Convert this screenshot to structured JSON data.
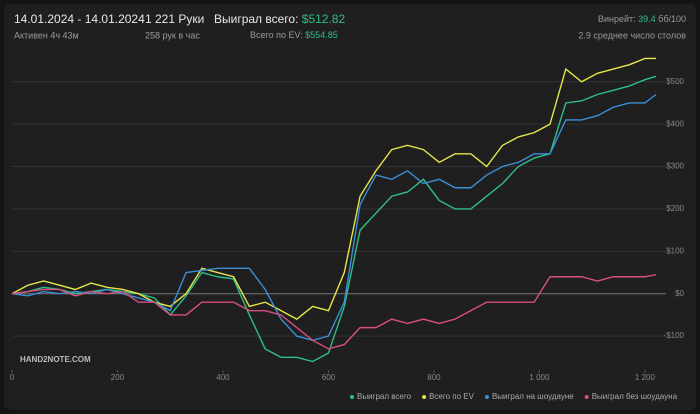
{
  "header": {
    "date_range": "14.01.2024 - 14.01.2024",
    "active": "Активен 4ч 43м",
    "hands": "1 221 Руки",
    "hands_per_hour": "258 рук в час",
    "won_label": "Выиграл всего:",
    "won_value": "$512.82",
    "ev_label": "Всего по EV:",
    "ev_value": "$554.85",
    "winrate_label": "Винрейт:",
    "winrate_value": "39.4",
    "winrate_unit": "бб/100",
    "tables": "2.9 среднее число столов"
  },
  "watermark": "HAND2NOTE.COM",
  "chart_data": {
    "type": "line",
    "x": [
      0,
      30,
      60,
      90,
      120,
      150,
      180,
      210,
      240,
      270,
      300,
      330,
      360,
      390,
      420,
      450,
      480,
      510,
      540,
      570,
      600,
      630,
      660,
      690,
      720,
      750,
      780,
      810,
      840,
      870,
      900,
      930,
      960,
      990,
      1020,
      1050,
      1080,
      1110,
      1140,
      1170,
      1200,
      1221
    ],
    "xlim": [
      0,
      1221
    ],
    "xticks": [
      0,
      200,
      400,
      600,
      800,
      {
        "value": 1000,
        "label": "1 000"
      },
      {
        "value": 1200,
        "label": "1 200"
      }
    ],
    "ylim": [
      -180,
      575
    ],
    "yticks": [
      {
        "value": -100,
        "label": "-$100"
      },
      {
        "value": 0,
        "label": "$0"
      },
      {
        "value": 100,
        "label": "$100"
      },
      {
        "value": 200,
        "label": "$200"
      },
      {
        "value": 300,
        "label": "$300"
      },
      {
        "value": 400,
        "label": "$400"
      },
      {
        "value": 500,
        "label": "$500"
      }
    ],
    "grid": true,
    "series": [
      {
        "name": "Выиграл всего",
        "color": "#2fbf85",
        "values": [
          0,
          5,
          15,
          10,
          0,
          5,
          10,
          5,
          0,
          -10,
          -50,
          -5,
          50,
          40,
          35,
          -50,
          -130,
          -150,
          -150,
          -160,
          -140,
          -30,
          150,
          190,
          230,
          240,
          270,
          220,
          200,
          200,
          230,
          260,
          300,
          320,
          330,
          450,
          455,
          470,
          480,
          490,
          505,
          513
        ]
      },
      {
        "name": "Всего по EV",
        "color": "#e6e64a",
        "values": [
          0,
          20,
          30,
          20,
          10,
          25,
          15,
          10,
          0,
          -20,
          -30,
          0,
          60,
          50,
          40,
          -30,
          -20,
          -40,
          -60,
          -30,
          -40,
          50,
          230,
          290,
          340,
          350,
          340,
          310,
          330,
          330,
          300,
          350,
          370,
          380,
          400,
          530,
          500,
          520,
          530,
          540,
          555,
          555
        ]
      },
      {
        "name": "Выиграл на шоудауне",
        "color": "#3a8fd8",
        "values": [
          0,
          -5,
          5,
          0,
          5,
          0,
          10,
          0,
          -10,
          -20,
          -40,
          50,
          55,
          60,
          60,
          60,
          10,
          -60,
          -100,
          -110,
          -100,
          -20,
          210,
          280,
          270,
          290,
          260,
          270,
          250,
          250,
          280,
          300,
          310,
          330,
          330,
          410,
          410,
          420,
          440,
          450,
          450,
          470
        ]
      },
      {
        "name": "Выиграл без шоудауна",
        "color": "#d94f7d",
        "values": [
          0,
          5,
          10,
          10,
          -5,
          5,
          0,
          5,
          -20,
          -20,
          -50,
          -50,
          -20,
          -20,
          -20,
          -40,
          -40,
          -50,
          -80,
          -110,
          -130,
          -120,
          -80,
          -80,
          -60,
          -70,
          -60,
          -70,
          -60,
          -40,
          -20,
          -20,
          -20,
          -20,
          40,
          40,
          40,
          30,
          40,
          40,
          40,
          45
        ]
      }
    ]
  }
}
